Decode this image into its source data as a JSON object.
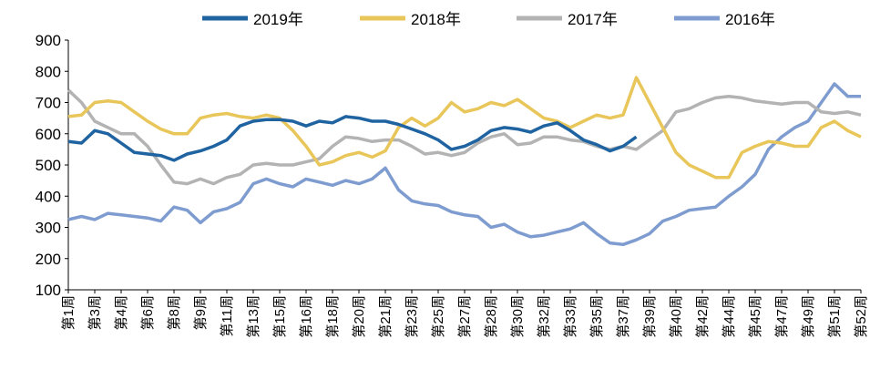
{
  "chart_data": {
    "type": "line",
    "categories": [
      "第1周",
      null,
      "第3周",
      null,
      "第4周",
      null,
      "第6周",
      null,
      "第8周",
      null,
      "第9周",
      null,
      "第11周",
      null,
      "第13周",
      null,
      "第15周",
      null,
      "第16周",
      null,
      "第18周",
      null,
      "第20周",
      null,
      "第21周",
      null,
      "第23周",
      null,
      "第25周",
      null,
      "第27周",
      null,
      "第28周",
      null,
      "第30周",
      null,
      "第32周",
      null,
      "第33周",
      null,
      "第35周",
      null,
      "第37周",
      null,
      "第39周",
      null,
      "第40周",
      null,
      "第42周",
      null,
      "第44周",
      null,
      "第45周",
      null,
      "第47周",
      null,
      "第49周",
      null,
      "第51周",
      null,
      "第52周"
    ],
    "series": [
      {
        "name": "2019年",
        "color": "#1f63a0",
        "values": [
          575,
          570,
          610,
          600,
          570,
          540,
          535,
          530,
          515,
          535,
          545,
          560,
          580,
          625,
          640,
          645,
          645,
          640,
          625,
          640,
          635,
          655,
          650,
          640,
          640,
          630,
          615,
          600,
          580,
          550,
          560,
          580,
          610,
          620,
          615,
          605,
          625,
          635,
          610,
          580,
          565,
          545,
          560,
          590,
          null,
          null,
          null,
          null,
          null,
          null,
          null,
          null,
          null,
          null,
          null,
          null,
          null,
          null,
          null,
          null,
          null
        ]
      },
      {
        "name": "2018年",
        "color": "#e8c65a",
        "values": [
          655,
          660,
          700,
          705,
          700,
          670,
          640,
          615,
          600,
          600,
          650,
          660,
          665,
          655,
          650,
          660,
          650,
          610,
          560,
          500,
          510,
          530,
          540,
          525,
          545,
          620,
          650,
          625,
          650,
          700,
          670,
          680,
          700,
          690,
          710,
          680,
          650,
          640,
          620,
          640,
          660,
          650,
          660,
          780,
          700,
          620,
          540,
          500,
          480,
          460,
          460,
          540,
          560,
          575,
          570,
          560,
          560,
          620,
          640,
          610,
          590
        ]
      },
      {
        "name": "2017年",
        "color": "#b3b3b3",
        "values": [
          740,
          700,
          640,
          620,
          600,
          600,
          560,
          500,
          445,
          440,
          455,
          440,
          460,
          470,
          500,
          505,
          500,
          500,
          510,
          520,
          560,
          590,
          585,
          575,
          580,
          580,
          560,
          535,
          540,
          530,
          540,
          570,
          590,
          600,
          565,
          570,
          590,
          590,
          580,
          575,
          560,
          550,
          560,
          550,
          580,
          610,
          670,
          680,
          700,
          715,
          720,
          715,
          705,
          700,
          695,
          700,
          700,
          670,
          665,
          670,
          660
        ]
      },
      {
        "name": "2016年",
        "color": "#7e9ccf",
        "values": [
          325,
          335,
          325,
          345,
          340,
          335,
          330,
          320,
          365,
          355,
          315,
          350,
          360,
          380,
          440,
          455,
          440,
          430,
          455,
          445,
          435,
          450,
          440,
          455,
          490,
          420,
          385,
          375,
          370,
          350,
          340,
          335,
          300,
          310,
          285,
          270,
          275,
          285,
          295,
          315,
          280,
          250,
          245,
          260,
          280,
          320,
          335,
          355,
          360,
          365,
          400,
          430,
          470,
          550,
          590,
          620,
          640,
          700,
          760,
          720,
          720
        ]
      }
    ],
    "ylim": [
      100,
      900
    ],
    "yticks": [
      100,
      200,
      300,
      400,
      500,
      600,
      700,
      800,
      900
    ],
    "legend": "top"
  }
}
